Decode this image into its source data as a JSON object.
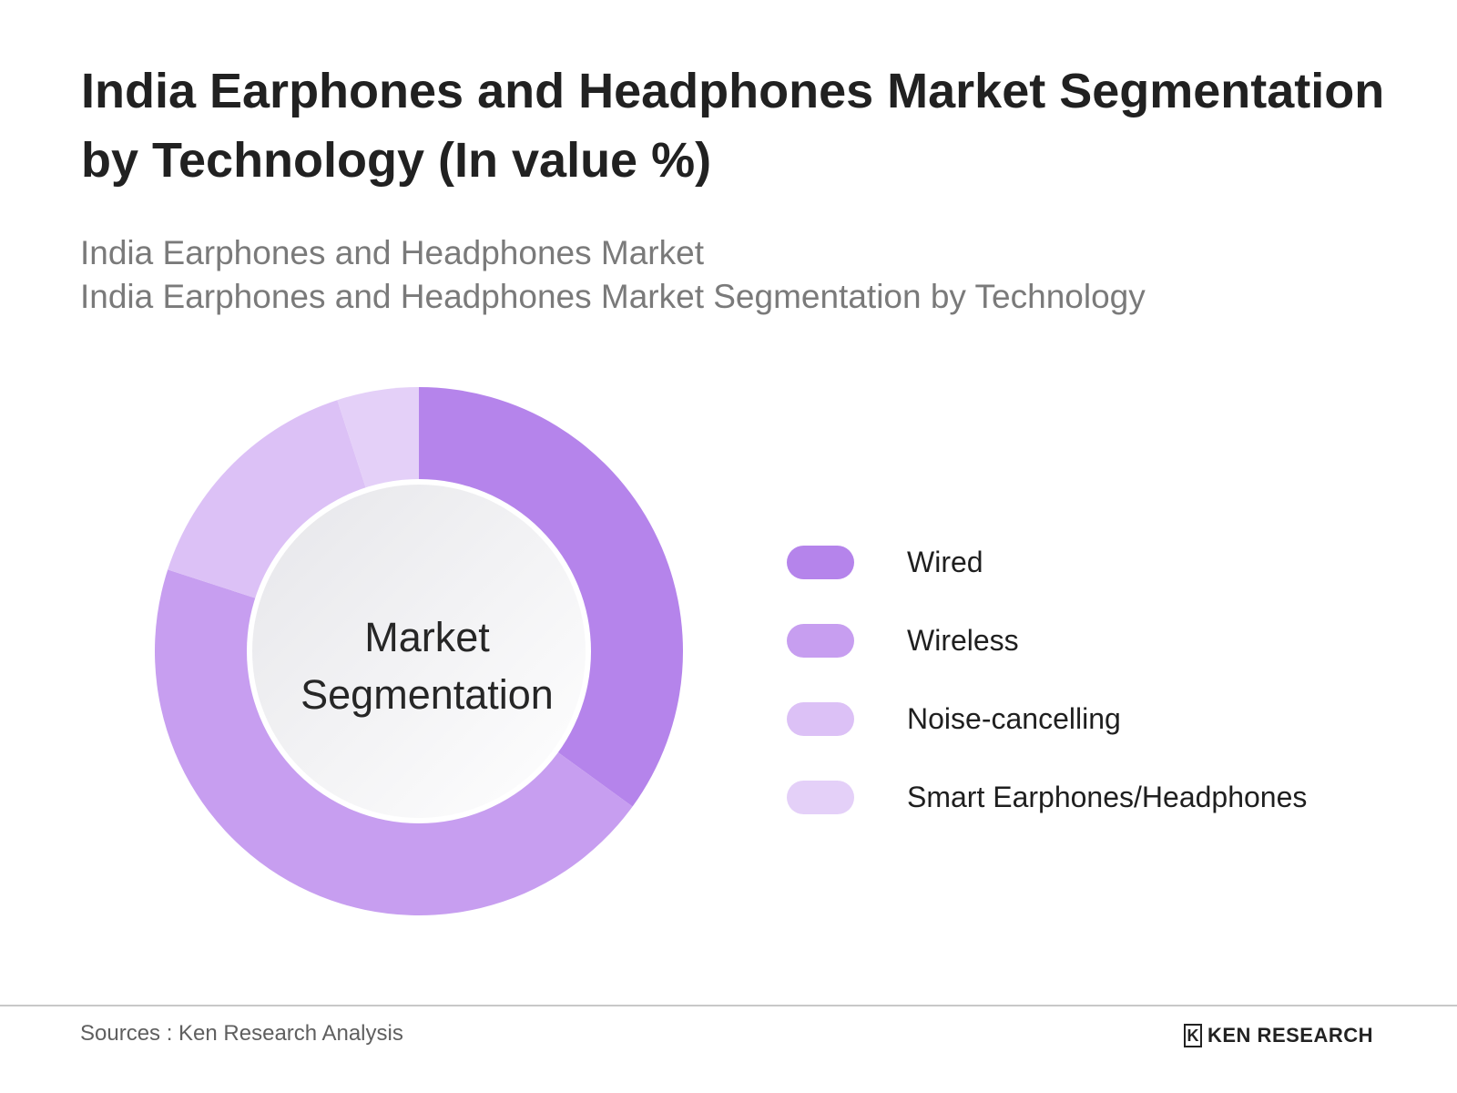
{
  "title": "India Earphones and Headphones Market Segmentation by Technology (In value %)",
  "subtitle_lines": [
    "India Earphones and Headphones Market",
    "India Earphones and Headphones Market Segmentation by Technology"
  ],
  "center_label": [
    "Market",
    "Segmentation"
  ],
  "footer": {
    "sources": "Sources : Ken Research Analysis",
    "logo_text": "KEN RESEARCH",
    "logo_mark": "K"
  },
  "chart_data": {
    "type": "pie",
    "title": "India Earphones and Headphones Market Segmentation by Technology (In value %)",
    "categories": [
      "Wired",
      "Wireless",
      "Noise-cancelling",
      "Smart Earphones/Headphones"
    ],
    "values": [
      35,
      45,
      15,
      5
    ],
    "colors": [
      "#b584eb",
      "#c79ef0",
      "#dcc1f6",
      "#e4d0f8"
    ],
    "legend_position": "right",
    "donut": true
  }
}
